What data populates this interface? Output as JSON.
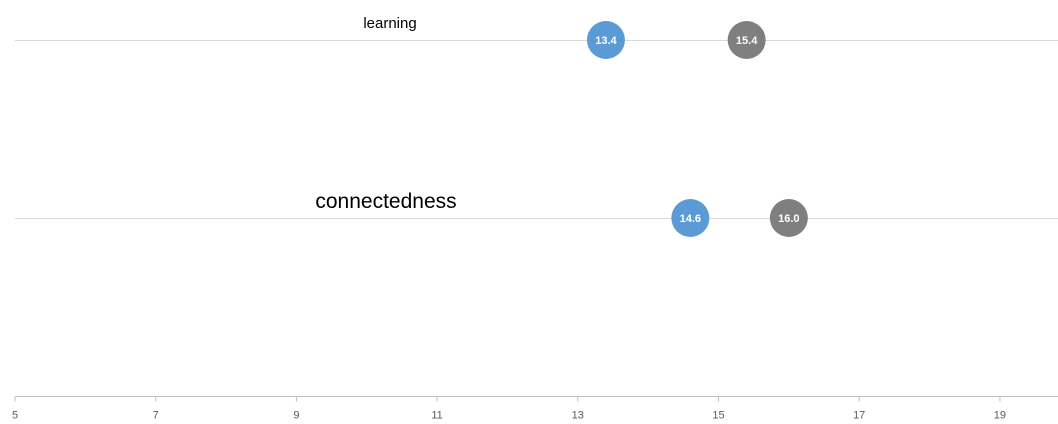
{
  "chart_data": {
    "type": "scatter",
    "subtype": "dot-plot",
    "categories": [
      "learning",
      "connectedness"
    ],
    "series": [
      {
        "color": "#5b9bd5",
        "values": [
          13.4,
          14.6
        ],
        "labels": [
          "13.4",
          "14.6"
        ]
      },
      {
        "color": "#7f7f7f",
        "values": [
          15.4,
          16.0
        ],
        "labels": [
          "15.4",
          "16.0"
        ]
      }
    ],
    "xlim": [
      5,
      20
    ],
    "xticks": [
      5,
      7,
      9,
      11,
      13,
      15,
      17,
      19
    ],
    "xtick_labels": [
      "5",
      "7",
      "9",
      "11",
      "13",
      "15",
      "17",
      "19"
    ],
    "grid": false,
    "legend": "none"
  }
}
